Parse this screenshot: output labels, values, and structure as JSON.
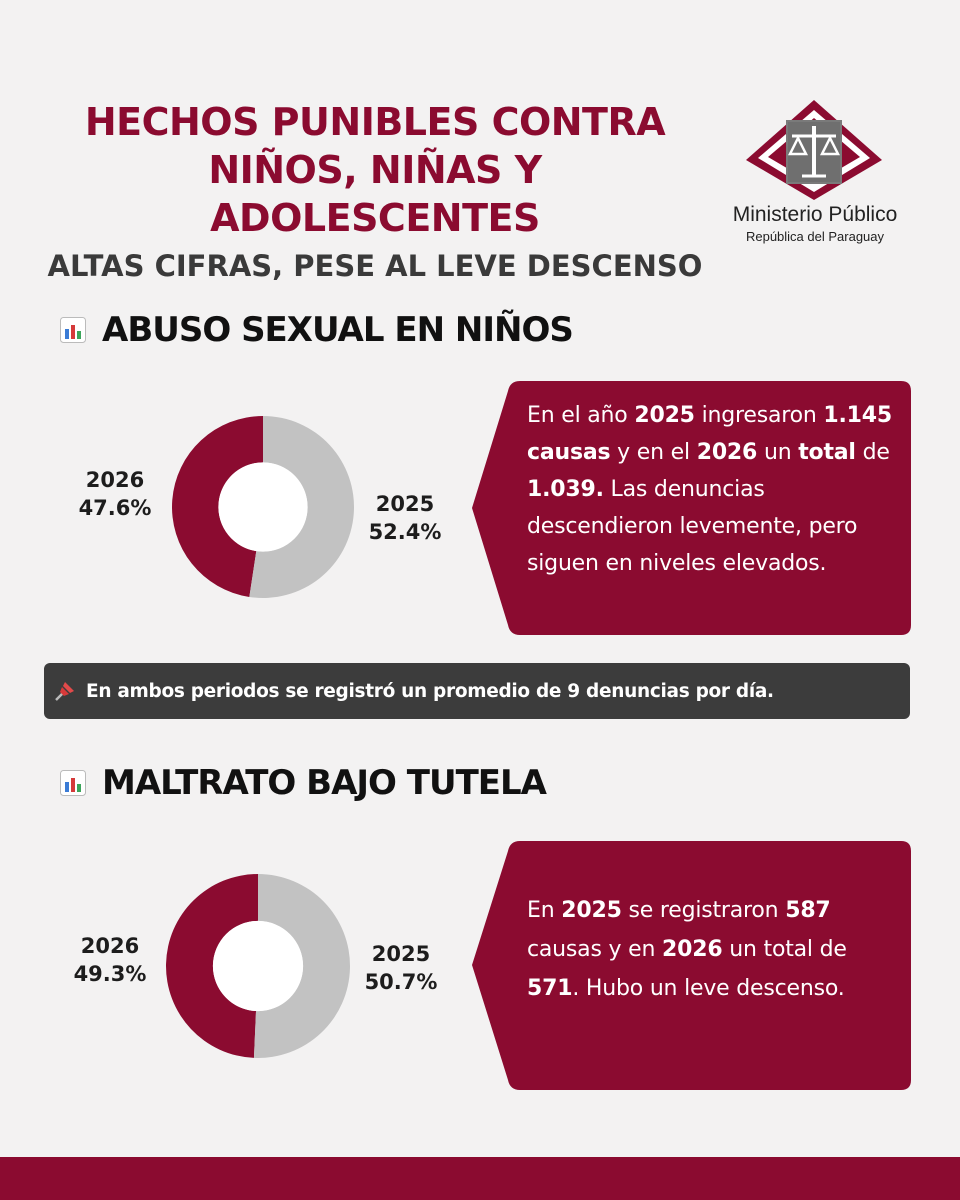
{
  "header": {
    "title_line1": "HECHOS PUNIBLES CONTRA",
    "title_line2": "NIÑOS, NIÑAS Y ADOLESCENTES",
    "subtitle": "ALTAS CIFRAS, PESE AL LEVE DESCENSO"
  },
  "logo": {
    "name": "Ministerio Público",
    "subtitle": "República del Paraguay"
  },
  "colors": {
    "accent": "#8b0b30",
    "grey_slice": "#c2c2c2",
    "note_bg": "#3c3c3c",
    "background": "#f3f2f2"
  },
  "sections": [
    {
      "icon": "bar-chart-icon",
      "title": "ABUSO SEXUAL EN NIÑOS",
      "callout": {
        "p1": "En el año ",
        "b1": "2025",
        "p2": " ingresaron ",
        "b2": "1.145 causas",
        "p3": " y en el ",
        "b3": "2026",
        "p4": " un ",
        "b4": "total",
        "p5": " de ",
        "b5": "1.039.",
        "p6": " Las denuncias descendieron levemente, pero siguen en niveles elevados."
      }
    },
    {
      "icon": "bar-chart-icon",
      "title": "MALTRATO BAJO TUTELA",
      "callout": {
        "p1": "En ",
        "b1": "2025",
        "p2": " se registraron ",
        "b2": "587",
        "p3": " causas y en ",
        "b3": "2026",
        "p4": " un total de ",
        "b4": "571",
        "p5": ". Hubo un leve descenso."
      }
    }
  ],
  "note": {
    "icon": "pushpin-icon",
    "text": "En ambos periodos se registró un promedio de 9 denuncias por día."
  },
  "chart_data": [
    {
      "type": "pie",
      "donut": true,
      "categories": [
        "2026",
        "2025"
      ],
      "values": [
        47.6,
        52.4
      ],
      "labels": [
        "2026\n47.6%",
        "2025\n52.4%"
      ],
      "colors": [
        "#8b0b30",
        "#c2c2c2"
      ]
    },
    {
      "type": "pie",
      "donut": true,
      "categories": [
        "2026",
        "2025"
      ],
      "values": [
        49.3,
        50.7
      ],
      "labels": [
        "2026\n49.3%",
        "2025\n50.7%"
      ],
      "colors": [
        "#8b0b30",
        "#c2c2c2"
      ]
    }
  ]
}
